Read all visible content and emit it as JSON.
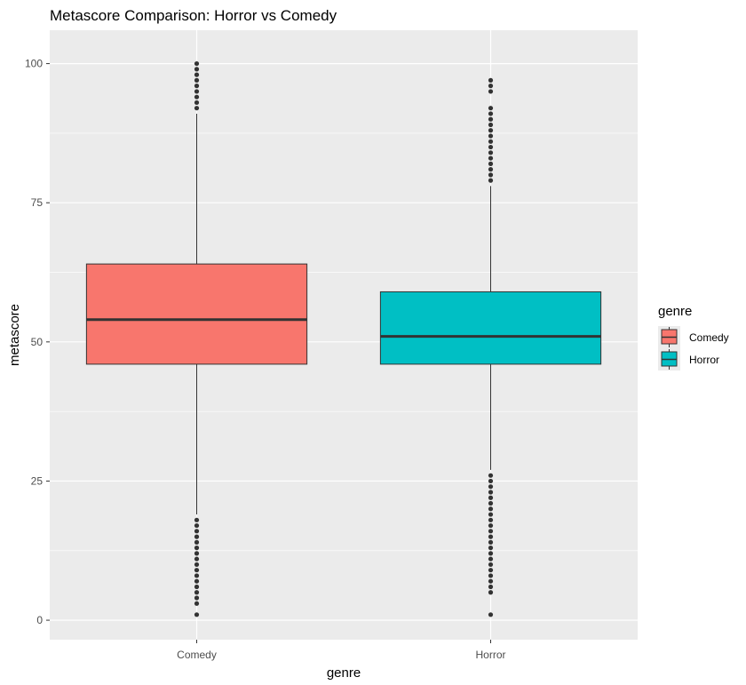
{
  "chart_data": {
    "type": "boxplot",
    "title": "Metascore Comparison: Horror vs Comedy",
    "xlabel": "genre",
    "ylabel": "metascore",
    "ylim": [
      -3.5,
      106
    ],
    "yticks": [
      0,
      25,
      50,
      75,
      100
    ],
    "categories": [
      "Comedy",
      "Horror"
    ],
    "grid": true,
    "legend": {
      "title": "genre",
      "placement": "right"
    },
    "panel_background": "#ebebeb",
    "series": [
      {
        "name": "Comedy",
        "color": "#f8766d",
        "q1": 46,
        "median": 54,
        "q3": 64,
        "whisker_low": 19,
        "whisker_high": 91,
        "outliers": [
          1,
          3,
          4,
          5,
          6,
          7,
          8,
          9,
          10,
          11,
          12,
          13,
          14,
          15,
          16,
          17,
          18,
          92,
          93,
          94,
          95,
          96,
          97,
          98,
          99,
          100
        ]
      },
      {
        "name": "Horror",
        "color": "#00bfc4",
        "q1": 46,
        "median": 51,
        "q3": 59,
        "whisker_low": 27,
        "whisker_high": 78,
        "outliers": [
          1,
          5,
          6,
          7,
          8,
          9,
          10,
          11,
          12,
          13,
          14,
          15,
          16,
          17,
          18,
          19,
          20,
          21,
          22,
          23,
          24,
          25,
          26,
          79,
          80,
          81,
          82,
          83,
          84,
          85,
          86,
          87,
          88,
          89,
          90,
          91,
          92,
          95,
          96,
          97
        ]
      }
    ]
  }
}
